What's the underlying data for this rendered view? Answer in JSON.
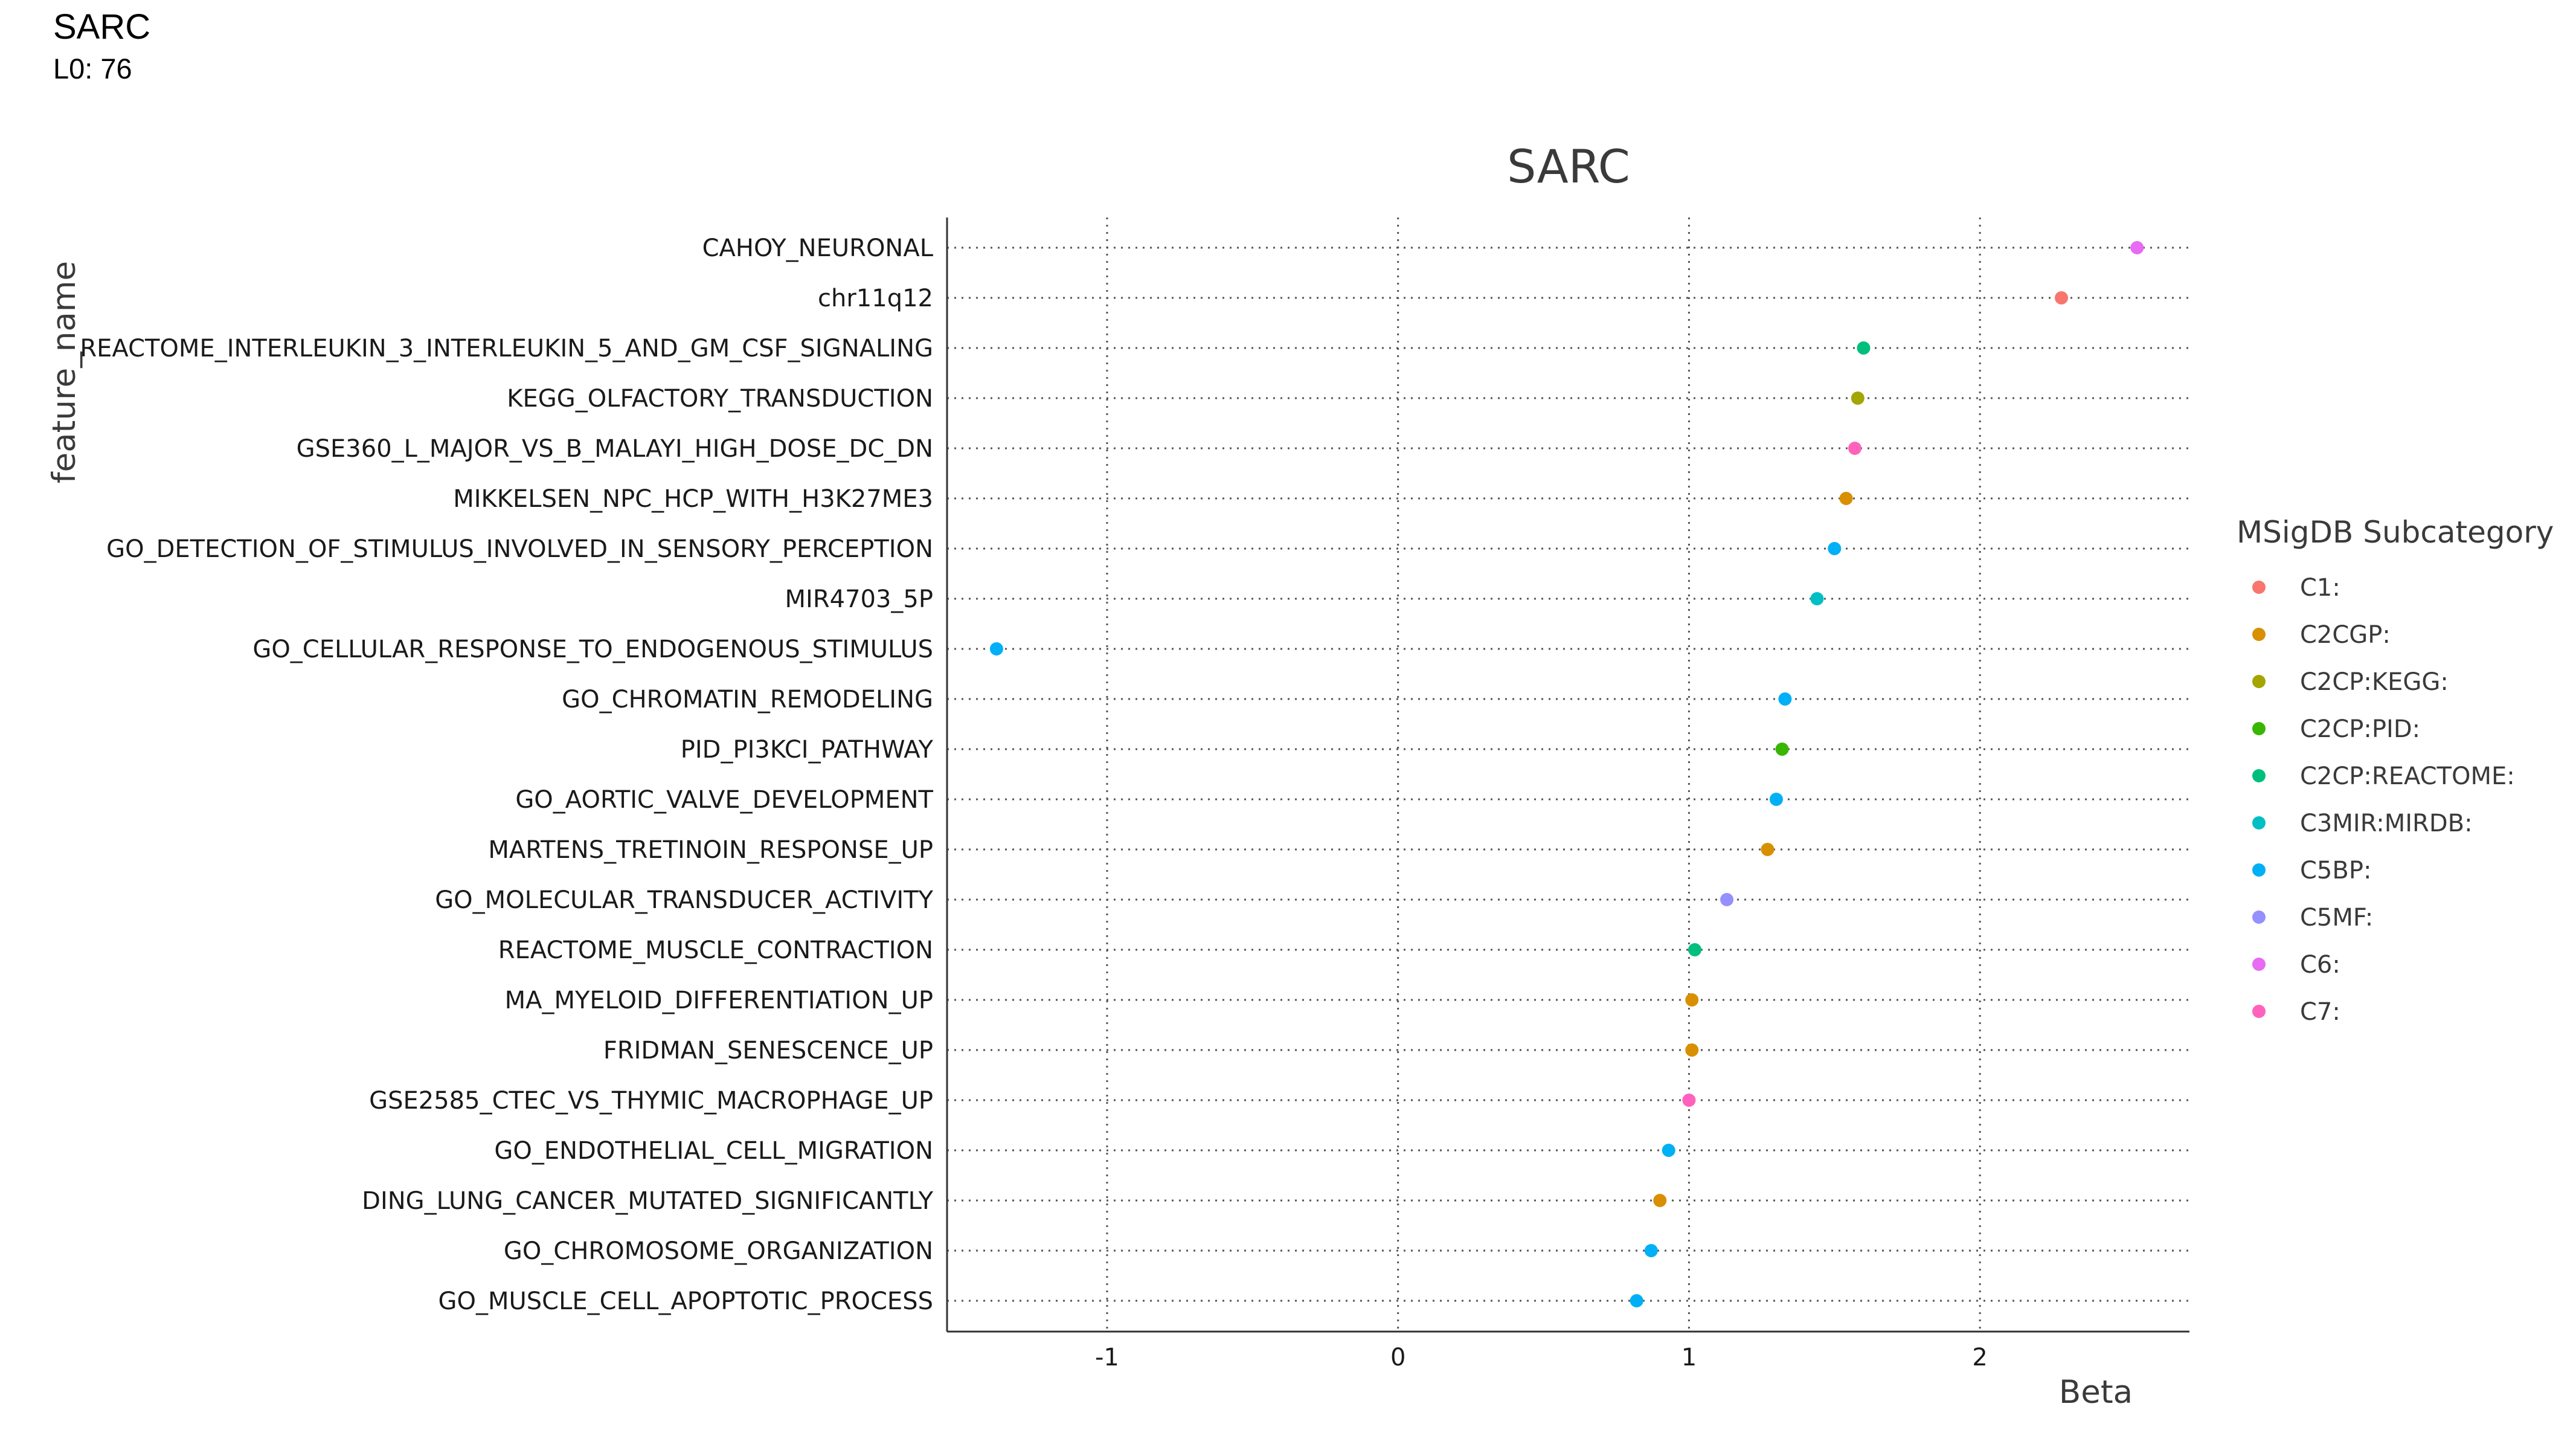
{
  "header": {
    "title": "SARC",
    "subtitle": "L0: 76"
  },
  "chart_data": {
    "type": "scatter",
    "title": "SARC",
    "xlabel": "Beta",
    "ylabel": "feature_name",
    "xlim": [
      -1.55,
      2.72
    ],
    "x_ticks": [
      -1,
      0,
      1,
      2
    ],
    "grid": true,
    "legend_title": "MSigDB Subcategory",
    "legend_position": "right",
    "subcategories": [
      {
        "name": "C1:",
        "color": "#F8766D"
      },
      {
        "name": "C2CGP:",
        "color": "#D89000"
      },
      {
        "name": "C2CP:KEGG:",
        "color": "#A3A500"
      },
      {
        "name": "C2CP:PID:",
        "color": "#39B600"
      },
      {
        "name": "C2CP:REACTOME:",
        "color": "#00BF7D"
      },
      {
        "name": "C3MIR:MIRDB:",
        "color": "#00BFC4"
      },
      {
        "name": "C5BP:",
        "color": "#00B0F6"
      },
      {
        "name": "C5MF:",
        "color": "#9590FF"
      },
      {
        "name": "C6:",
        "color": "#E76BF3"
      },
      {
        "name": "C7:",
        "color": "#FF62BC"
      }
    ],
    "points": [
      {
        "feature": "CAHOY_NEURONAL",
        "beta": 2.54,
        "subcategory": "C6:"
      },
      {
        "feature": "chr11q12",
        "beta": 2.28,
        "subcategory": "C1:"
      },
      {
        "feature": "REACTOME_INTERLEUKIN_3_INTERLEUKIN_5_AND_GM_CSF_SIGNALING",
        "beta": 1.6,
        "subcategory": "C2CP:REACTOME:"
      },
      {
        "feature": "KEGG_OLFACTORY_TRANSDUCTION",
        "beta": 1.58,
        "subcategory": "C2CP:KEGG:"
      },
      {
        "feature": "GSE360_L_MAJOR_VS_B_MALAYI_HIGH_DOSE_DC_DN",
        "beta": 1.57,
        "subcategory": "C7:"
      },
      {
        "feature": "MIKKELSEN_NPC_HCP_WITH_H3K27ME3",
        "beta": 1.54,
        "subcategory": "C2CGP:"
      },
      {
        "feature": "GO_DETECTION_OF_STIMULUS_INVOLVED_IN_SENSORY_PERCEPTION",
        "beta": 1.5,
        "subcategory": "C5BP:"
      },
      {
        "feature": "MIR4703_5P",
        "beta": 1.44,
        "subcategory": "C3MIR:MIRDB:"
      },
      {
        "feature": "GO_CELLULAR_RESPONSE_TO_ENDOGENOUS_STIMULUS",
        "beta": -1.38,
        "subcategory": "C5BP:"
      },
      {
        "feature": "GO_CHROMATIN_REMODELING",
        "beta": 1.33,
        "subcategory": "C5BP:"
      },
      {
        "feature": "PID_PI3KCI_PATHWAY",
        "beta": 1.32,
        "subcategory": "C2CP:PID:"
      },
      {
        "feature": "GO_AORTIC_VALVE_DEVELOPMENT",
        "beta": 1.3,
        "subcategory": "C5BP:"
      },
      {
        "feature": "MARTENS_TRETINOIN_RESPONSE_UP",
        "beta": 1.27,
        "subcategory": "C2CGP:"
      },
      {
        "feature": "GO_MOLECULAR_TRANSDUCER_ACTIVITY",
        "beta": 1.13,
        "subcategory": "C5MF:"
      },
      {
        "feature": "REACTOME_MUSCLE_CONTRACTION",
        "beta": 1.02,
        "subcategory": "C2CP:REACTOME:"
      },
      {
        "feature": "MA_MYELOID_DIFFERENTIATION_UP",
        "beta": 1.01,
        "subcategory": "C2CGP:"
      },
      {
        "feature": "FRIDMAN_SENESCENCE_UP",
        "beta": 1.01,
        "subcategory": "C2CGP:"
      },
      {
        "feature": "GSE2585_CTEC_VS_THYMIC_MACROPHAGE_UP",
        "beta": 1.0,
        "subcategory": "C7:"
      },
      {
        "feature": "GO_ENDOTHELIAL_CELL_MIGRATION",
        "beta": 0.93,
        "subcategory": "C5BP:"
      },
      {
        "feature": "DING_LUNG_CANCER_MUTATED_SIGNIFICANTLY",
        "beta": 0.9,
        "subcategory": "C2CGP:"
      },
      {
        "feature": "GO_CHROMOSOME_ORGANIZATION",
        "beta": 0.87,
        "subcategory": "C5BP:"
      },
      {
        "feature": "GO_MUSCLE_CELL_APOPTOTIC_PROCESS",
        "beta": 0.82,
        "subcategory": "C5BP:"
      }
    ]
  }
}
